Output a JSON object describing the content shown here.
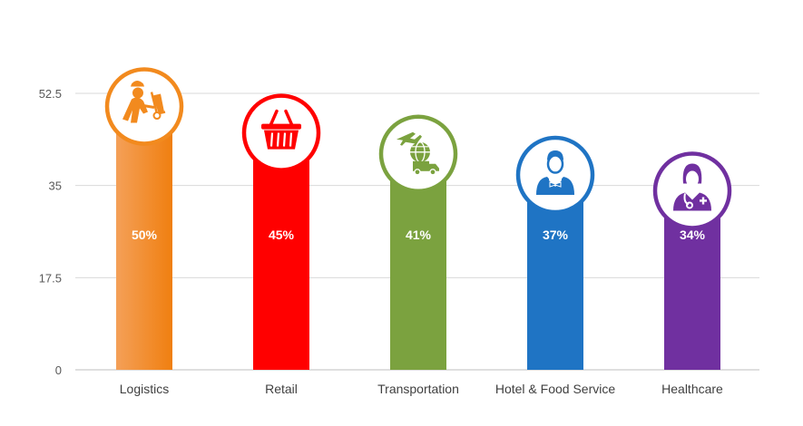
{
  "chart_data": {
    "type": "bar",
    "categories": [
      "Logistics",
      "Retail",
      "Transportation",
      "Hotel & Food Service",
      "Healthcare"
    ],
    "values": [
      50,
      45,
      41,
      37,
      34
    ],
    "value_labels": [
      "50%",
      "45%",
      "41%",
      "37%",
      "34%"
    ],
    "yticks": [
      "0",
      "17.5",
      "35",
      "52.5"
    ],
    "ylim": [
      0,
      52.5
    ],
    "grid": true,
    "colors": [
      "#f28a1e",
      "#ff0000",
      "#7ba23f",
      "#1f74c4",
      "#7030a0"
    ],
    "icons": [
      "delivery-worker-icon",
      "shopping-basket-icon",
      "plane-globe-truck-icon",
      "waiter-icon",
      "doctor-icon"
    ]
  }
}
